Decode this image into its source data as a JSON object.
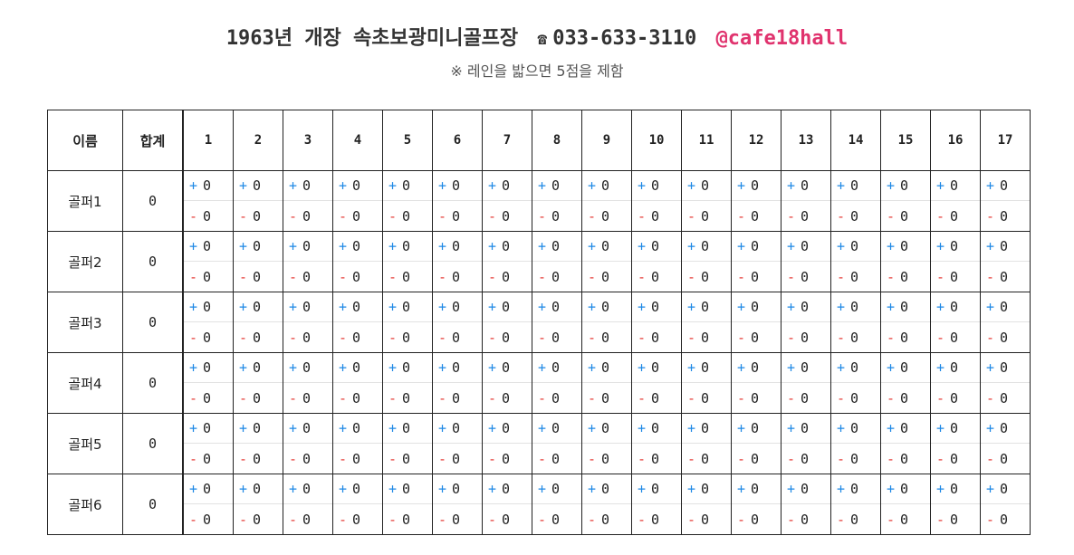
{
  "header": {
    "title": "1963년 개장 속초보광미니골프장",
    "phone_icon": "☎",
    "phone": "033-633-3110",
    "instagram": "@cafe18hall",
    "instagram_color": "#e0336e",
    "subtitle": "※ 레인을 밟으면 5점을 제함"
  },
  "table": {
    "name_header": "이름",
    "total_header": "합계",
    "holes": [
      "1",
      "2",
      "3",
      "4",
      "5",
      "6",
      "7",
      "8",
      "9",
      "10",
      "11",
      "12",
      "13",
      "14",
      "15",
      "16",
      "17"
    ],
    "plus_label": "+",
    "minus_label": "-",
    "plus_color": "#1e88e5",
    "minus_color": "#e53935",
    "players": [
      {
        "name": "골퍼1",
        "total": "0",
        "plus": [
          "0",
          "0",
          "0",
          "0",
          "0",
          "0",
          "0",
          "0",
          "0",
          "0",
          "0",
          "0",
          "0",
          "0",
          "0",
          "0",
          "0"
        ],
        "minus": [
          "0",
          "0",
          "0",
          "0",
          "0",
          "0",
          "0",
          "0",
          "0",
          "0",
          "0",
          "0",
          "0",
          "0",
          "0",
          "0",
          "0"
        ]
      },
      {
        "name": "골퍼2",
        "total": "0",
        "plus": [
          "0",
          "0",
          "0",
          "0",
          "0",
          "0",
          "0",
          "0",
          "0",
          "0",
          "0",
          "0",
          "0",
          "0",
          "0",
          "0",
          "0"
        ],
        "minus": [
          "0",
          "0",
          "0",
          "0",
          "0",
          "0",
          "0",
          "0",
          "0",
          "0",
          "0",
          "0",
          "0",
          "0",
          "0",
          "0",
          "0"
        ]
      },
      {
        "name": "골퍼3",
        "total": "0",
        "plus": [
          "0",
          "0",
          "0",
          "0",
          "0",
          "0",
          "0",
          "0",
          "0",
          "0",
          "0",
          "0",
          "0",
          "0",
          "0",
          "0",
          "0"
        ],
        "minus": [
          "0",
          "0",
          "0",
          "0",
          "0",
          "0",
          "0",
          "0",
          "0",
          "0",
          "0",
          "0",
          "0",
          "0",
          "0",
          "0",
          "0"
        ]
      },
      {
        "name": "골퍼4",
        "total": "0",
        "plus": [
          "0",
          "0",
          "0",
          "0",
          "0",
          "0",
          "0",
          "0",
          "0",
          "0",
          "0",
          "0",
          "0",
          "0",
          "0",
          "0",
          "0"
        ],
        "minus": [
          "0",
          "0",
          "0",
          "0",
          "0",
          "0",
          "0",
          "0",
          "0",
          "0",
          "0",
          "0",
          "0",
          "0",
          "0",
          "0",
          "0"
        ]
      },
      {
        "name": "골퍼5",
        "total": "0",
        "plus": [
          "0",
          "0",
          "0",
          "0",
          "0",
          "0",
          "0",
          "0",
          "0",
          "0",
          "0",
          "0",
          "0",
          "0",
          "0",
          "0",
          "0"
        ],
        "minus": [
          "0",
          "0",
          "0",
          "0",
          "0",
          "0",
          "0",
          "0",
          "0",
          "0",
          "0",
          "0",
          "0",
          "0",
          "0",
          "0",
          "0"
        ]
      },
      {
        "name": "골퍼6",
        "total": "0",
        "plus": [
          "0",
          "0",
          "0",
          "0",
          "0",
          "0",
          "0",
          "0",
          "0",
          "0",
          "0",
          "0",
          "0",
          "0",
          "0",
          "0",
          "0"
        ],
        "minus": [
          "0",
          "0",
          "0",
          "0",
          "0",
          "0",
          "0",
          "0",
          "0",
          "0",
          "0",
          "0",
          "0",
          "0",
          "0",
          "0",
          "0"
        ]
      }
    ]
  }
}
